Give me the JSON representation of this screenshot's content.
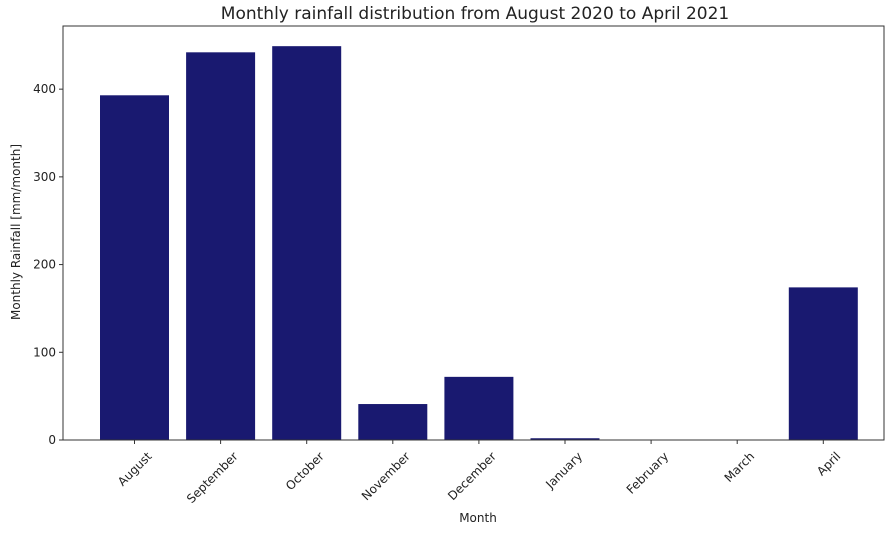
{
  "chart_data": {
    "type": "bar",
    "title": "Monthly rainfall distribution from August 2020 to April 2021",
    "xlabel": "Month",
    "ylabel": "Monthly Rainfall [mm/month]",
    "categories": [
      "August",
      "September",
      "October",
      "November",
      "December",
      "January",
      "February",
      "March",
      "April"
    ],
    "values": [
      393,
      442,
      449,
      41,
      72,
      2,
      0,
      0,
      174
    ],
    "ylim": [
      0,
      472
    ],
    "yticks": [
      0,
      100,
      200,
      300,
      400
    ],
    "bar_color": "#191970",
    "grid": false,
    "legend": "none"
  }
}
